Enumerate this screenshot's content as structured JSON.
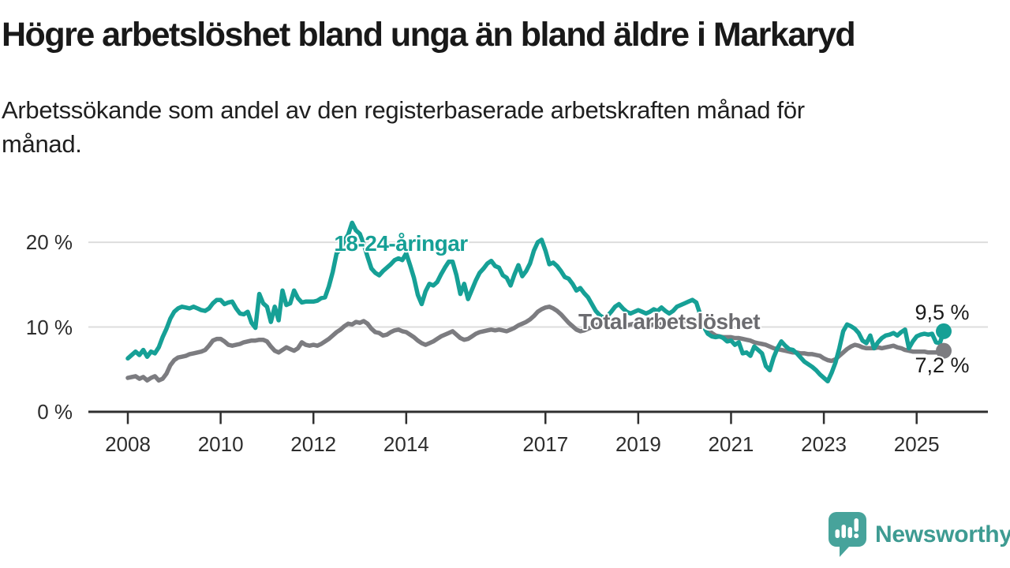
{
  "header": {
    "title": "Högre arbetslöshet bland unga än bland äldre i Markaryd",
    "subtitle_line1": "Arbetssökande som andel av den registerbaserade arbetskraften månad för",
    "subtitle_line2": "månad."
  },
  "logo": {
    "text": "Newsworthy",
    "icon": "newsworthy-speech-bubble-bar-chart-icon",
    "icon_color": "#47a39b",
    "text_color": "#3e9b92"
  },
  "colors": {
    "young_series": "#16a096",
    "total_series": "#7c7c80",
    "total_label": "#6c6c70",
    "gridline": "#dddddd",
    "axis": "#2f2f2f",
    "text": "#1a1a1a"
  },
  "chart_data": {
    "type": "line",
    "title": "Högre arbetslöshet bland unga än bland äldre i Markaryd",
    "subtitle": "Arbetssökande som andel av den registerbaserade arbetskraften månad för månad.",
    "x_unit": "month",
    "x_start": "2008-01",
    "x_end": "2025-08",
    "ylim": [
      0,
      23.5
    ],
    "grid": "horizontal",
    "legend_position": "inline-labels",
    "yticks": [
      {
        "value": 0,
        "label": "0 %"
      },
      {
        "value": 10,
        "label": "10 %"
      },
      {
        "value": 20,
        "label": "20 %"
      }
    ],
    "xticks": [
      {
        "year": 2008,
        "label": "2008"
      },
      {
        "year": 2010,
        "label": "2010"
      },
      {
        "year": 2012,
        "label": "2012"
      },
      {
        "year": 2014,
        "label": "2014"
      },
      {
        "year": 2017,
        "label": "2017"
      },
      {
        "year": 2019,
        "label": "2019"
      },
      {
        "year": 2021,
        "label": "2021"
      },
      {
        "year": 2023,
        "label": "2023"
      },
      {
        "year": 2025,
        "label": "2025"
      }
    ],
    "series": [
      {
        "name": "18-24-åringar",
        "color": "#16a096",
        "end_label": "9,5 %",
        "end_value": 9.5,
        "values": [
          6.3,
          6.7,
          7.1,
          6.7,
          7.3,
          6.5,
          7.1,
          6.9,
          7.6,
          8.8,
          9.8,
          11.0,
          11.8,
          12.2,
          12.4,
          12.3,
          12.2,
          12.4,
          12.2,
          12.0,
          11.9,
          12.2,
          12.8,
          13.2,
          13.2,
          12.7,
          12.9,
          13.0,
          12.2,
          11.6,
          11.5,
          11.8,
          10.5,
          9.9,
          13.9,
          12.8,
          12.4,
          10.6,
          12.4,
          10.8,
          14.3,
          12.6,
          12.8,
          14.3,
          13.4,
          12.9,
          13.0,
          13.0,
          13.0,
          13.1,
          13.4,
          13.5,
          14.8,
          16.5,
          18.7,
          19.2,
          20.2,
          20.9,
          22.3,
          21.4,
          21.0,
          19.8,
          18.3,
          16.9,
          16.4,
          16.1,
          16.6,
          17.0,
          17.4,
          17.9,
          18.1,
          17.9,
          18.7,
          17.3,
          15.8,
          13.8,
          12.7,
          14.2,
          15.1,
          14.9,
          15.3,
          16.2,
          17.0,
          17.7,
          17.7,
          16.1,
          13.9,
          15.1,
          13.3,
          14.4,
          15.5,
          16.4,
          16.9,
          17.5,
          17.8,
          17.2,
          17.0,
          16.1,
          15.8,
          14.9,
          16.2,
          17.3,
          16.0,
          16.6,
          17.5,
          19.0,
          20.0,
          20.3,
          19.0,
          17.4,
          17.6,
          17.2,
          16.6,
          15.9,
          15.7,
          15.1,
          14.3,
          14.6,
          14.0,
          13.5,
          12.7,
          11.9,
          11.4,
          11.1,
          11.3,
          11.8,
          12.4,
          12.7,
          12.2,
          11.8,
          11.6,
          11.8,
          12.0,
          11.8,
          11.6,
          11.8,
          12.1,
          11.9,
          12.3,
          11.9,
          11.6,
          11.9,
          12.4,
          12.6,
          12.8,
          13.0,
          13.2,
          12.9,
          11.5,
          10.0,
          9.2,
          8.9,
          8.8,
          8.9,
          8.7,
          8.3,
          8.4,
          7.9,
          8.2,
          6.9,
          7.0,
          6.6,
          7.7,
          7.3,
          6.9,
          5.4,
          4.9,
          6.4,
          7.5,
          8.3,
          7.8,
          7.4,
          7.3,
          6.9,
          6.4,
          5.9,
          5.6,
          5.3,
          4.9,
          4.4,
          4.0,
          3.6,
          4.6,
          5.8,
          7.5,
          9.5,
          10.3,
          10.1,
          9.8,
          9.3,
          8.4,
          8.1,
          9.0,
          7.5,
          8.2,
          8.7,
          9.0,
          9.1,
          9.3,
          9.0,
          9.4,
          9.7,
          7.5,
          8.3,
          8.9,
          9.1,
          9.2,
          9.1,
          9.2,
          8.2,
          8.1,
          9.5
        ]
      },
      {
        "name": "Total arbetslöshet",
        "color": "#7c7c80",
        "end_label": "7,2 %",
        "end_value": 7.2,
        "values": [
          4.0,
          4.1,
          4.2,
          3.9,
          4.1,
          3.7,
          4.0,
          4.2,
          3.7,
          3.9,
          4.5,
          5.5,
          6.1,
          6.4,
          6.5,
          6.6,
          6.8,
          6.9,
          7.0,
          7.1,
          7.3,
          7.8,
          8.4,
          8.6,
          8.6,
          8.3,
          7.9,
          7.8,
          7.9,
          8.0,
          8.2,
          8.3,
          8.4,
          8.4,
          8.5,
          8.5,
          8.3,
          7.7,
          7.2,
          7.0,
          7.3,
          7.6,
          7.4,
          7.2,
          7.5,
          8.2,
          7.9,
          7.8,
          7.9,
          7.8,
          8.0,
          8.3,
          8.6,
          9.0,
          9.4,
          9.7,
          10.1,
          10.4,
          10.3,
          10.6,
          10.5,
          10.7,
          10.4,
          9.8,
          9.4,
          9.3,
          9.0,
          9.1,
          9.4,
          9.6,
          9.7,
          9.5,
          9.4,
          9.1,
          8.8,
          8.4,
          8.1,
          7.9,
          8.1,
          8.3,
          8.6,
          8.9,
          9.1,
          9.3,
          9.5,
          9.1,
          8.7,
          8.5,
          8.6,
          8.9,
          9.2,
          9.4,
          9.5,
          9.6,
          9.7,
          9.6,
          9.7,
          9.6,
          9.5,
          9.7,
          9.9,
          10.2,
          10.4,
          10.6,
          10.9,
          11.3,
          11.8,
          12.1,
          12.3,
          12.4,
          12.2,
          11.9,
          11.5,
          11.0,
          10.5,
          10.1,
          9.7,
          9.5,
          9.6,
          9.8,
          10.0,
          10.2,
          10.3,
          10.2,
          10.1,
          10.2,
          10.3,
          10.4,
          10.3,
          10.2,
          10.3,
          10.4,
          10.4,
          10.3,
          10.2,
          10.2,
          10.3,
          10.4,
          10.3,
          10.2,
          10.3,
          10.4,
          10.5,
          10.6,
          10.7,
          10.8,
          10.9,
          10.8,
          10.5,
          10.1,
          9.7,
          9.3,
          9.0,
          8.9,
          8.8,
          8.8,
          8.8,
          8.7,
          8.7,
          8.6,
          8.5,
          8.4,
          8.2,
          8.1,
          8.0,
          7.9,
          7.7,
          7.5,
          7.4,
          7.3,
          7.2,
          7.1,
          7.0,
          7.0,
          6.9,
          6.9,
          6.8,
          6.8,
          6.7,
          6.6,
          6.3,
          6.1,
          6.0,
          6.2,
          6.6,
          7.0,
          7.4,
          7.7,
          7.9,
          7.8,
          7.6,
          7.5,
          7.5,
          7.5,
          7.6,
          7.5,
          7.6,
          7.7,
          7.8,
          7.6,
          7.5,
          7.3,
          7.2,
          7.1,
          7.1,
          7.1,
          7.1,
          7.0,
          7.0,
          7.0,
          7.0,
          7.2
        ]
      }
    ]
  }
}
